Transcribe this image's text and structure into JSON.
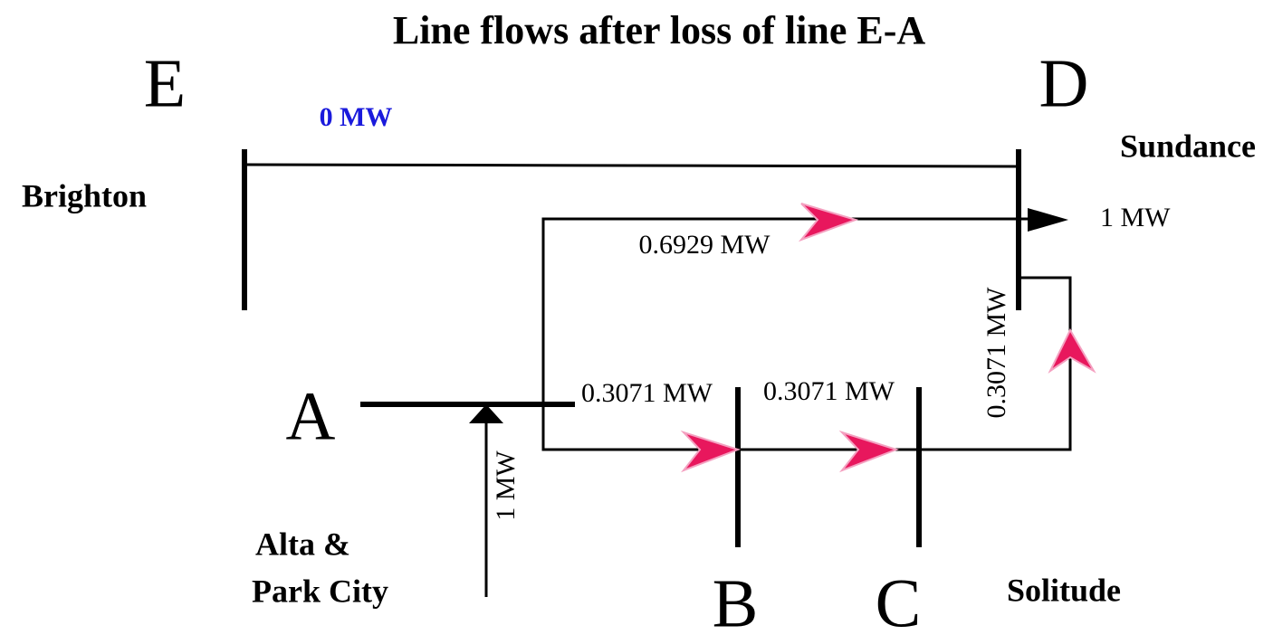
{
  "title": "Line flows after loss of line E-A",
  "buses": [
    {
      "letter": "E",
      "name": [
        "Brighton"
      ]
    },
    {
      "letter": "D",
      "name": [
        "Sundance"
      ]
    },
    {
      "letter": "A",
      "name": [
        "Alta &",
        "Park City"
      ]
    },
    {
      "letter": "B"
    },
    {
      "letter": "C",
      "name": [
        "Solitude"
      ]
    }
  ],
  "flows": {
    "E_D": "0 MW",
    "A_D": "0.6929 MW",
    "A_B": "0.3071 MW",
    "B_C": "0.3071 MW",
    "C_D": "0.3071 MW",
    "injection_A": "1 MW",
    "load_D": "1 MW"
  }
}
